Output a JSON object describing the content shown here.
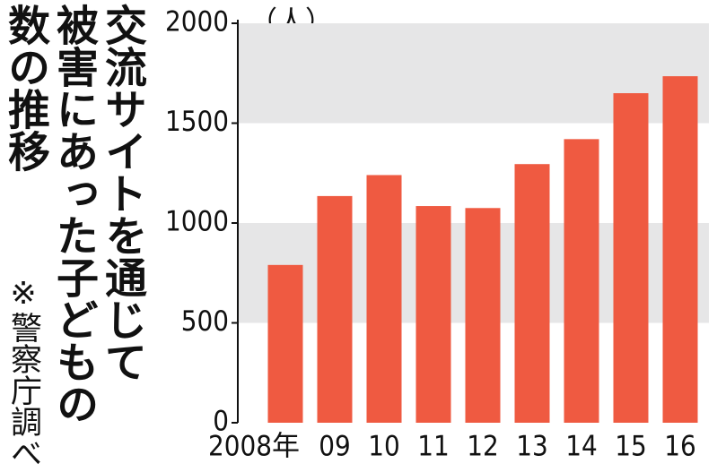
{
  "chart_data": {
    "type": "bar",
    "title": [
      "交流サイトを通じて",
      "被害にあった子どもの",
      "数の推移"
    ],
    "note": "※警察庁調べ",
    "unit_label": "（人）",
    "categories": [
      "2008年",
      "09",
      "10",
      "11",
      "12",
      "13",
      "14",
      "15",
      "16"
    ],
    "values": [
      790,
      1135,
      1240,
      1085,
      1075,
      1295,
      1420,
      1650,
      1735
    ],
    "color": "#ef5a41",
    "ylim": [
      0,
      2000
    ],
    "yticks": [
      0,
      500,
      1000,
      1500,
      2000
    ],
    "grid": "bands",
    "grid_color": "#e6e6e7"
  }
}
